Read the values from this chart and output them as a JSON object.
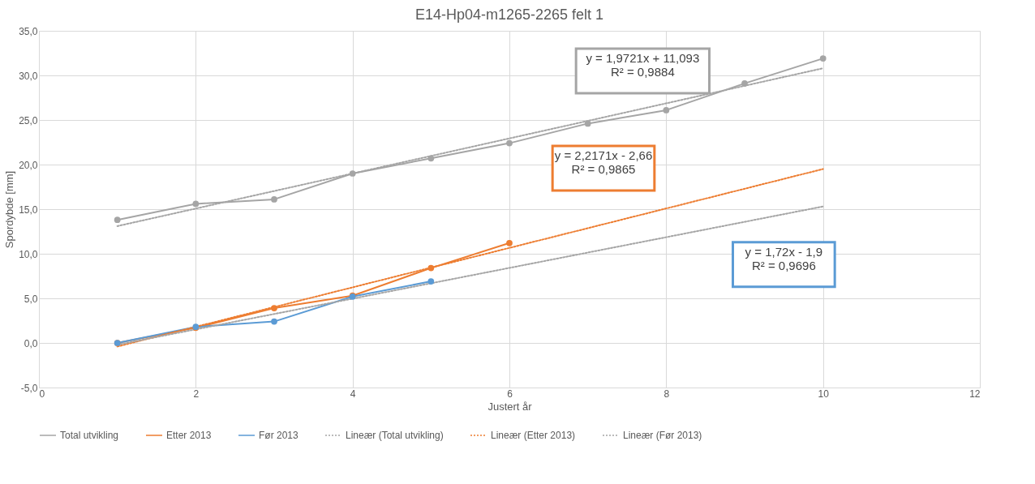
{
  "chart_data": {
    "type": "line",
    "title": "E14-Hp04-m1265-2265 felt 1",
    "xlabel": "Justert år",
    "ylabel": "Spordybde [mm]",
    "xlim": [
      0,
      12
    ],
    "xticks": [
      0,
      2,
      4,
      6,
      8,
      10,
      12
    ],
    "ylim": [
      -5,
      35
    ],
    "yticks": [
      {
        "value": -5,
        "label": "-5,0"
      },
      {
        "value": 0,
        "label": "0,0"
      },
      {
        "value": 5,
        "label": "5,0"
      },
      {
        "value": 10,
        "label": "10,0"
      },
      {
        "value": 15,
        "label": "15,0"
      },
      {
        "value": 20,
        "label": "20,0"
      },
      {
        "value": 25,
        "label": "25,0"
      },
      {
        "value": 30,
        "label": "30,0"
      },
      {
        "value": 35,
        "label": "35,0"
      }
    ],
    "grid": true,
    "legend": "bottom",
    "series": [
      {
        "name": "Total utvikling",
        "color": "#a5a5a5",
        "marker": "circle",
        "line_style": "solid",
        "x": [
          1,
          2,
          3,
          4,
          5,
          6,
          7,
          8,
          9,
          10
        ],
        "values": [
          13.8,
          15.6,
          16.1,
          19.0,
          20.7,
          22.4,
          24.6,
          26.1,
          29.1,
          31.9
        ]
      },
      {
        "name": "Etter 2013",
        "color": "#ed7d31",
        "marker": "circle",
        "line_style": "solid",
        "x": [
          1,
          2,
          3,
          4,
          5,
          6
        ],
        "values": [
          0.0,
          1.7,
          3.9,
          5.3,
          8.4,
          11.2
        ]
      },
      {
        "name": "Før 2013",
        "color": "#5b9bd5",
        "marker": "circle",
        "line_style": "solid",
        "x": [
          1,
          2,
          3,
          4,
          5
        ],
        "values": [
          0.0,
          1.8,
          2.4,
          5.2,
          6.9
        ]
      },
      {
        "name": "Lineær (Total utvikling)",
        "color": "#a5a5a5",
        "marker": "none",
        "line_style": "dotted",
        "x": [
          1,
          10
        ],
        "values": [
          13.1,
          30.8
        ]
      },
      {
        "name": "Lineær (Etter 2013)",
        "color": "#ed7d31",
        "marker": "none",
        "line_style": "dotted",
        "x": [
          1,
          10
        ],
        "values": [
          -0.4,
          19.5
        ]
      },
      {
        "name": "Lineær (Før 2013)",
        "color": "#a5a5a5",
        "marker": "none",
        "line_style": "dotted",
        "x": [
          1,
          10
        ],
        "values": [
          -0.2,
          15.3
        ]
      }
    ],
    "annotations": [
      "y = 1,9721x + 11,093\nR² = 0,9884",
      "y = 2,2171x - 2,66\nR² = 0,9865",
      "y = 1,72x - 1,9\nR² = 0,9696"
    ]
  }
}
